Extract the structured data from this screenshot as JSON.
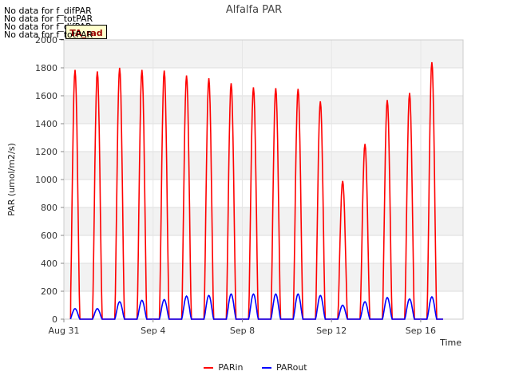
{
  "chart_data": {
    "type": "line",
    "title": "Alfalfa PAR",
    "xlabel": "Time",
    "ylabel": "PAR (umol/m2/s)",
    "ylim": [
      0,
      2000
    ],
    "yticks": [
      0,
      200,
      400,
      600,
      800,
      1000,
      1200,
      1400,
      1600,
      1800,
      2000
    ],
    "xlim": [
      0,
      17.9
    ],
    "xticks": [
      {
        "value": 0,
        "label": "Aug 31"
      },
      {
        "value": 4,
        "label": "Sep 4"
      },
      {
        "value": 8,
        "label": "Sep 8"
      },
      {
        "value": 12,
        "label": "Sep 12"
      },
      {
        "value": 16,
        "label": "Sep 16"
      }
    ],
    "grid": true,
    "legend_position": "bottom-center",
    "series": [
      {
        "name": "PARin",
        "color": "#ff0000",
        "daily_peaks": [
          1785,
          1775,
          1800,
          1785,
          1780,
          1745,
          1725,
          1690,
          1660,
          1655,
          1650,
          1560,
          990,
          1255,
          1570,
          1620,
          1840
        ]
      },
      {
        "name": "PARout",
        "color": "#0000ff",
        "daily_peaks": [
          75,
          75,
          125,
          135,
          140,
          165,
          170,
          180,
          180,
          180,
          180,
          170,
          100,
          125,
          155,
          145,
          160
        ]
      }
    ],
    "annotations": [
      "No data for f_difPAR",
      "No data for f_totPAR",
      "No data for f_difPAR",
      "No data for f_totPAR"
    ],
    "tag_label": "TA_rad"
  }
}
